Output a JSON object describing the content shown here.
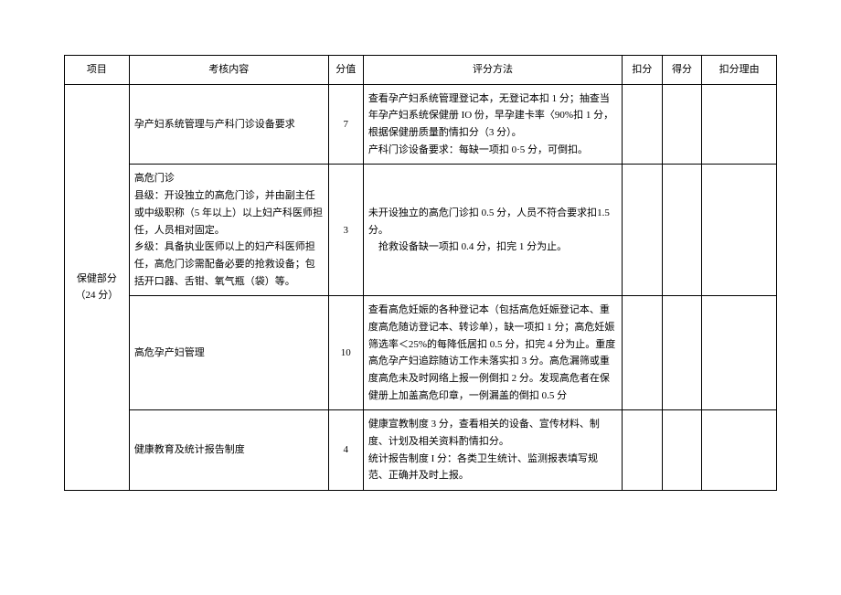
{
  "headers": {
    "project": "项目",
    "content": "考核内容",
    "score": "分值",
    "method": "评分方法",
    "deduct": "扣分",
    "earned": "得分",
    "reason": "扣分理由"
  },
  "section": {
    "title": "保健部分（24 分）"
  },
  "rows": [
    {
      "content": "孕产妇系统管理与产科门诊设备要求",
      "score": "7",
      "method": "查看孕产妇系统管理登记本，无登记本扣 1 分；抽查当年孕产妇系统保健册 IO 份，早孕建卡率〈90%扣 1 分，根据保健册质量酌情扣分（3 分）。\n产科门诊设备要求：每缺一项扣 0·5 分，可倒扣。"
    },
    {
      "content": "高危门诊\n县级：开设独立的高危门诊，并由副主任或中级职称（5 年以上）以上妇产科医师担任，人员相对固定。\n乡级：具备执业医师以上的妇产科医师担任，高危门诊需配备必要的抢救设备；包括开口器、舌钳、氧气瓶（袋）等。",
      "score": "3",
      "method": "未开设独立的高危门诊扣 0.5 分，人员不符合要求扣1.5 分。\n　抢救设备缺一项扣 0.4 分，扣完 1 分为止。"
    },
    {
      "content": "高危孕产妇管理",
      "score": "10",
      "method": "查看高危妊娠的各种登记本（包括高危妊娠登记本、重度高危随访登记本、转诊单），缺一项扣 1 分；高危妊娠筛选率＜25%的每降低居扣 0.5 分，扣完 4 分为止。重度高危孕产妇追踪随访工作未落实扣 3 分。高危漏筛或重度高危未及时网络上报一例倒扣 2 分。发现高危者在保健册上加盖高危印章，一例漏盖的倒扣 0.5 分"
    },
    {
      "content": "健康教育及统计报告制度",
      "score": "4",
      "method": "健康宣教制度 3 分，查看相关的设备、宣传材料、制度、计划及相关资料酌情扣分。\n统计报告制度 I 分：各类卫生统计、监测报表填写规范、正确并及时上报。"
    }
  ],
  "styling": {
    "background": "#ffffff",
    "border_color": "#000000",
    "text_color": "#000000",
    "font_size": 11,
    "font_family": "SimSun"
  }
}
